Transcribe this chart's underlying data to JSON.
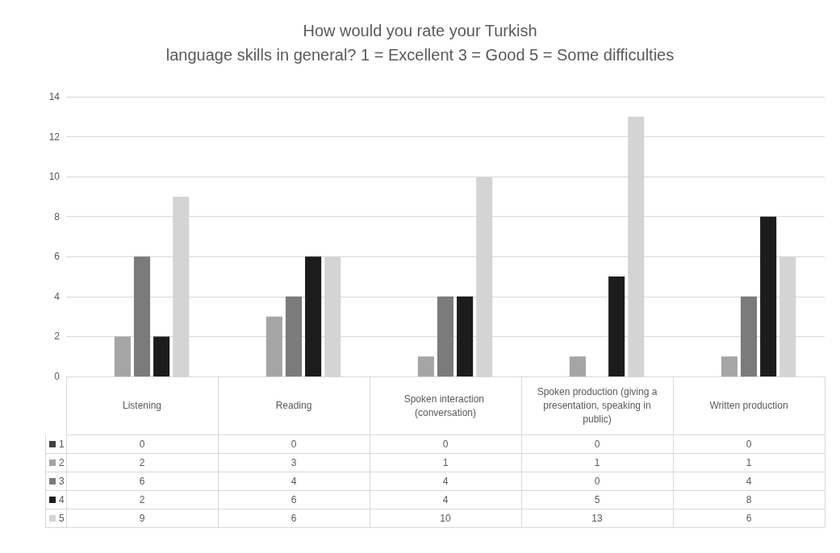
{
  "chart_data": {
    "type": "bar",
    "title": "How would you rate your Turkish\nlanguage skills in general? 1 = Excellent 3 = Good 5 = Some difficulties",
    "categories": [
      "Listening",
      "Reading",
      "Spoken interaction (conversation)",
      "Spoken production (giving a presentation, speaking in public)",
      "Written production"
    ],
    "series": [
      {
        "name": "1",
        "color": "#3f3f3f",
        "values": [
          0,
          0,
          0,
          0,
          0
        ]
      },
      {
        "name": "2",
        "color": "#a5a5a5",
        "values": [
          2,
          3,
          1,
          1,
          1
        ]
      },
      {
        "name": "3",
        "color": "#7b7b7b",
        "values": [
          6,
          4,
          4,
          0,
          4
        ]
      },
      {
        "name": "4",
        "color": "#1c1c1c",
        "values": [
          2,
          6,
          4,
          5,
          8
        ]
      },
      {
        "name": "5",
        "color": "#d4d4d4",
        "values": [
          9,
          6,
          10,
          13,
          6
        ]
      }
    ],
    "ylim": [
      0,
      14
    ],
    "yticks": [
      0,
      2,
      4,
      6,
      8,
      10,
      12,
      14
    ],
    "grid": true,
    "legend": "bottom",
    "data_labels": true
  }
}
